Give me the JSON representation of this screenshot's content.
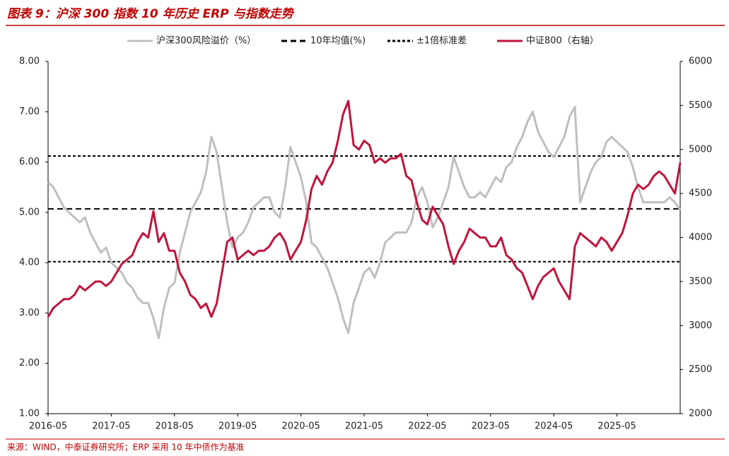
{
  "chart_data": {
    "type": "line",
    "title": "图表 9：沪深 300 指数 10 年历史 ERP 与指数走势",
    "source": "来源：WIND，中泰证券研究所；ERP 采用 10 年中债作为基准",
    "categories": [
      "2016-05",
      null,
      null,
      null,
      null,
      null,
      null,
      null,
      null,
      null,
      null,
      null,
      "2017-05",
      null,
      null,
      null,
      null,
      null,
      null,
      null,
      null,
      null,
      null,
      null,
      "2018-05",
      null,
      null,
      null,
      null,
      null,
      null,
      null,
      null,
      null,
      null,
      null,
      "2019-05",
      null,
      null,
      null,
      null,
      null,
      null,
      null,
      null,
      null,
      null,
      null,
      "2020-05",
      null,
      null,
      null,
      null,
      null,
      null,
      null,
      null,
      null,
      null,
      null,
      "2021-05",
      null,
      null,
      null,
      null,
      null,
      null,
      null,
      null,
      null,
      null,
      null,
      "2022-05",
      null,
      null,
      null,
      null,
      null,
      null,
      null,
      null,
      null,
      null,
      null,
      "2023-05",
      null,
      null,
      null,
      null,
      null,
      null,
      null,
      null,
      null,
      null,
      null,
      "2024-05",
      null,
      null,
      null,
      null,
      null,
      null,
      null,
      null,
      null,
      null,
      null,
      "2025-05",
      null,
      null,
      null,
      null,
      null,
      null,
      null,
      null,
      null,
      null,
      null,
      null
    ],
    "series": [
      {
        "name": "沪深300风险溢价（%）",
        "color": "#bfbfbf",
        "values": [
          5.6,
          5.5,
          5.3,
          5.1,
          5.0,
          4.9,
          4.8,
          4.9,
          4.6,
          4.4,
          4.2,
          4.3,
          4.0,
          3.9,
          3.8,
          3.6,
          3.5,
          3.3,
          3.2,
          3.2,
          2.9,
          2.5,
          3.1,
          3.5,
          3.6,
          4.2,
          4.6,
          5.0,
          5.2,
          5.4,
          5.8,
          6.5,
          6.2,
          5.5,
          4.8,
          4.3,
          4.5,
          4.6,
          4.8,
          5.1,
          5.2,
          5.3,
          5.3,
          5.0,
          4.9,
          5.5,
          6.3,
          6.0,
          5.7,
          5.2,
          4.4,
          4.3,
          4.1,
          3.9,
          3.6,
          3.3,
          2.9,
          2.6,
          3.2,
          3.5,
          3.8,
          3.9,
          3.7,
          4.0,
          4.4,
          4.5,
          4.6,
          4.6,
          4.6,
          4.8,
          5.3,
          5.5,
          5.2,
          4.7,
          4.9,
          5.2,
          5.5,
          6.1,
          5.8,
          5.5,
          5.3,
          5.3,
          5.4,
          5.3,
          5.5,
          5.7,
          5.6,
          5.9,
          6.0,
          6.3,
          6.5,
          6.8,
          7.0,
          6.6,
          6.4,
          6.2,
          6.1,
          6.3,
          6.5,
          6.9,
          7.1,
          5.2,
          5.5,
          5.8,
          6.0,
          6.1,
          6.4,
          6.5,
          6.4,
          6.3,
          6.2,
          5.9,
          5.5,
          5.2,
          5.2,
          5.2,
          5.2,
          5.2,
          5.3,
          5.2,
          5.05
        ]
      },
      {
        "name": "中证800（右轴）",
        "color": "#c0143c",
        "axis": "y2",
        "values": [
          3100,
          3200,
          3250,
          3300,
          3300,
          3350,
          3450,
          3400,
          3450,
          3500,
          3500,
          3450,
          3500,
          3600,
          3700,
          3750,
          3800,
          3950,
          4050,
          4000,
          4300,
          3950,
          4050,
          3850,
          3850,
          3600,
          3500,
          3350,
          3300,
          3200,
          3250,
          3100,
          3250,
          3600,
          3950,
          4000,
          3750,
          3800,
          3850,
          3800,
          3850,
          3850,
          3900,
          4000,
          4050,
          3950,
          3750,
          3850,
          3950,
          4200,
          4550,
          4700,
          4600,
          4750,
          4850,
          5100,
          5400,
          5550,
          5050,
          5000,
          5100,
          5050,
          4850,
          4900,
          4850,
          4900,
          4900,
          4950,
          4700,
          4650,
          4400,
          4200,
          4150,
          4350,
          4250,
          4150,
          3900,
          3700,
          3850,
          3950,
          4100,
          4050,
          4000,
          4000,
          3900,
          3900,
          4000,
          3800,
          3750,
          3650,
          3600,
          3450,
          3300,
          3450,
          3550,
          3600,
          3650,
          3500,
          3400,
          3300,
          3900,
          4050,
          4000,
          3950,
          3900,
          4000,
          3950,
          3850,
          3950,
          4050,
          4250,
          4500,
          4600,
          4550,
          4600,
          4700,
          4750,
          4700,
          4600,
          4500,
          4850
        ]
      }
    ],
    "reference_lines": [
      {
        "name": "10年均值(%)",
        "dash": "dashed",
        "values": [
          5.07
        ]
      },
      {
        "name": "±1倍标准差",
        "dash": "dotted",
        "values": [
          6.12,
          4.02
        ]
      }
    ],
    "ylim": [
      1,
      8
    ],
    "yticks": [
      {
        "value": 1,
        "label": "1.00"
      },
      {
        "value": 2,
        "label": "2.00"
      },
      {
        "value": 3,
        "label": "3.00"
      },
      {
        "value": 4,
        "label": "4.00"
      },
      {
        "value": 5,
        "label": "5.00"
      },
      {
        "value": 6,
        "label": "6.00"
      },
      {
        "value": 7,
        "label": "7.00"
      },
      {
        "value": 8,
        "label": "8.00"
      }
    ],
    "y2lim": [
      2000,
      6000
    ],
    "y2ticks": [
      2000,
      2500,
      3000,
      3500,
      4000,
      4500,
      5000,
      5500,
      6000
    ],
    "legend": "top"
  }
}
